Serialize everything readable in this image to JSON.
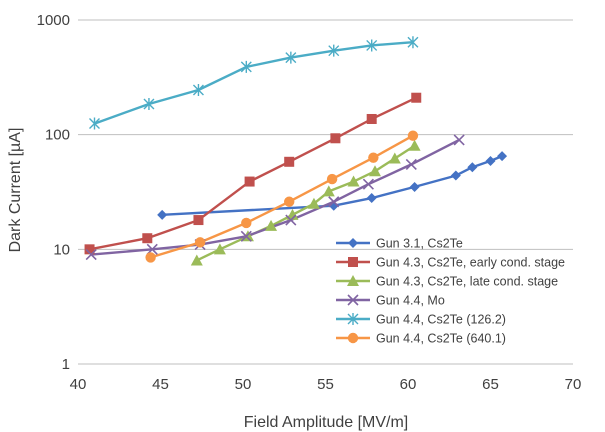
{
  "chart_data": {
    "type": "line",
    "title": "",
    "xlabel": "Field Amplitude [MV/m]",
    "ylabel": "Dark Current [µA]",
    "xlim": [
      40,
      70
    ],
    "ylim": [
      1,
      1000
    ],
    "y_scale": "log",
    "x_ticks": [
      "40",
      "45",
      "50",
      "55",
      "60",
      "65",
      "70"
    ],
    "y_ticks": [
      "1",
      "10",
      "100",
      "1000"
    ],
    "grid": "horizontal major gridlines",
    "legend_position": "lower-right",
    "series": [
      {
        "name": "Gun 3.1, Cs2Te",
        "color": "#4472C4",
        "marker": "diamond",
        "x": [
          45.1,
          55.5,
          57.8,
          60.4,
          62.9,
          63.9,
          65.0,
          65.7
        ],
        "y": [
          20,
          24,
          28,
          35,
          44,
          52,
          59,
          65
        ]
      },
      {
        "name": "Gun 4.3, Cs2Te, early cond. stage",
        "color": "#C0504D",
        "marker": "square",
        "x": [
          40.7,
          44.2,
          47.3,
          50.4,
          52.8,
          55.6,
          57.8,
          60.5
        ],
        "y": [
          10,
          12.5,
          18,
          39,
          58,
          93,
          137,
          210
        ]
      },
      {
        "name": "Gun 4.3, Cs2Te, late  cond. stage",
        "color": "#9BBB59",
        "marker": "triangle",
        "x": [
          47.2,
          48.6,
          50.3,
          51.7,
          53.0,
          54.3,
          55.2,
          56.7,
          58.0,
          59.2,
          60.4
        ],
        "y": [
          8,
          10,
          13,
          16,
          20,
          25,
          32,
          39,
          48,
          62,
          80
        ]
      },
      {
        "name": "Gun 4.4, Mo",
        "color": "#8064A2",
        "marker": "x",
        "x": [
          40.8,
          44.5,
          47.4,
          50.2,
          52.9,
          55.5,
          57.6,
          60.2,
          63.1
        ],
        "y": [
          9,
          10,
          11,
          13,
          18,
          26,
          37,
          55,
          90
        ]
      },
      {
        "name": "Gun 4.4, Cs2Te (126.2)",
        "color": "#4BACC6",
        "marker": "asterisk",
        "x": [
          41.0,
          44.3,
          47.3,
          50.2,
          52.9,
          55.5,
          57.8,
          60.3
        ],
        "y": [
          125,
          185,
          245,
          390,
          470,
          540,
          600,
          640
        ]
      },
      {
        "name": "Gun 4.4, Cs2Te (640.1)",
        "color": "#F79646",
        "marker": "circle",
        "x": [
          44.4,
          47.4,
          50.2,
          52.8,
          55.4,
          57.9,
          60.3
        ],
        "y": [
          8.5,
          11.5,
          17,
          26,
          41,
          63,
          98
        ]
      }
    ]
  }
}
